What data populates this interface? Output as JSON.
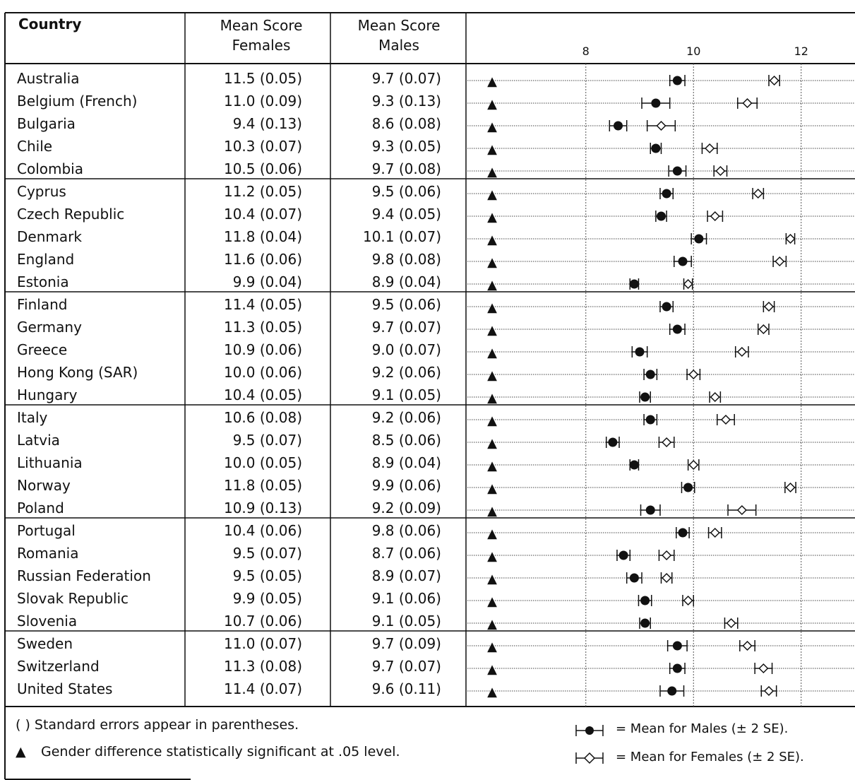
{
  "header": {
    "country": "Country",
    "females": [
      "Mean Score",
      "Females"
    ],
    "males": [
      "Mean Score",
      "Males"
    ]
  },
  "chart_data": {
    "type": "scatter",
    "x_ticks": [
      8,
      10,
      12
    ],
    "x_range": [
      5.8,
      13.0
    ],
    "significance_marker": "▲",
    "rows": [
      {
        "country": "Australia",
        "female": "11.5",
        "female_se": "(0.05)",
        "male": "9.7",
        "male_se": "(0.07)"
      },
      {
        "country": "Belgium (French)",
        "female": "11.0",
        "female_se": "(0.09)",
        "male": "9.3",
        "male_se": "(0.13)"
      },
      {
        "country": "Bulgaria",
        "female": "9.4",
        "female_se": "(0.13)",
        "male": "8.6",
        "male_se": "(0.08)"
      },
      {
        "country": "Chile",
        "female": "10.3",
        "female_se": "(0.07)",
        "male": "9.3",
        "male_se": "(0.05)"
      },
      {
        "country": "Colombia",
        "female": "10.5",
        "female_se": "(0.06)",
        "male": "9.7",
        "male_se": "(0.08)"
      },
      {
        "country": "Cyprus",
        "female": "11.2",
        "female_se": "(0.05)",
        "male": "9.5",
        "male_se": "(0.06)"
      },
      {
        "country": "Czech Republic",
        "female": "10.4",
        "female_se": "(0.07)",
        "male": "9.4",
        "male_se": "(0.05)"
      },
      {
        "country": "Denmark",
        "female": "11.8",
        "female_se": "(0.04)",
        "male": "10.1",
        "male_se": "(0.07)"
      },
      {
        "country": "England",
        "female": "11.6",
        "female_se": "(0.06)",
        "male": "9.8",
        "male_se": "(0.08)"
      },
      {
        "country": "Estonia",
        "female": "9.9",
        "female_se": "(0.04)",
        "male": "8.9",
        "male_se": "(0.04)"
      },
      {
        "country": "Finland",
        "female": "11.4",
        "female_se": "(0.05)",
        "male": "9.5",
        "male_se": "(0.06)"
      },
      {
        "country": "Germany",
        "female": "11.3",
        "female_se": "(0.05)",
        "male": "9.7",
        "male_se": "(0.07)"
      },
      {
        "country": "Greece",
        "female": "10.9",
        "female_se": "(0.06)",
        "male": "9.0",
        "male_se": "(0.07)"
      },
      {
        "country": "Hong Kong (SAR)",
        "female": "10.0",
        "female_se": "(0.06)",
        "male": "9.2",
        "male_se": "(0.06)"
      },
      {
        "country": "Hungary",
        "female": "10.4",
        "female_se": "(0.05)",
        "male": "9.1",
        "male_se": "(0.05)"
      },
      {
        "country": "Italy",
        "female": "10.6",
        "female_se": "(0.08)",
        "male": "9.2",
        "male_se": "(0.06)"
      },
      {
        "country": "Latvia",
        "female": "9.5",
        "female_se": "(0.07)",
        "male": "8.5",
        "male_se": "(0.06)"
      },
      {
        "country": "Lithuania",
        "female": "10.0",
        "female_se": "(0.05)",
        "male": "8.9",
        "male_se": "(0.04)"
      },
      {
        "country": "Norway",
        "female": "11.8",
        "female_se": "(0.05)",
        "male": "9.9",
        "male_se": "(0.06)"
      },
      {
        "country": "Poland",
        "female": "10.9",
        "female_se": "(0.13)",
        "male": "9.2",
        "male_se": "(0.09)"
      },
      {
        "country": "Portugal",
        "female": "10.4",
        "female_se": "(0.06)",
        "male": "9.8",
        "male_se": "(0.06)"
      },
      {
        "country": "Romania",
        "female": "9.5",
        "female_se": "(0.07)",
        "male": "8.7",
        "male_se": "(0.06)"
      },
      {
        "country": "Russian Federation",
        "female": "9.5",
        "female_se": "(0.05)",
        "male": "8.9",
        "male_se": "(0.07)"
      },
      {
        "country": "Slovak Republic",
        "female": "9.9",
        "female_se": "(0.05)",
        "male": "9.1",
        "male_se": "(0.06)"
      },
      {
        "country": "Slovenia",
        "female": "10.7",
        "female_se": "(0.06)",
        "male": "9.1",
        "male_se": "(0.05)"
      },
      {
        "country": "Sweden",
        "female": "11.0",
        "female_se": "(0.07)",
        "male": "9.7",
        "male_se": "(0.09)"
      },
      {
        "country": "Switzerland",
        "female": "11.3",
        "female_se": "(0.08)",
        "male": "9.7",
        "male_se": "(0.07)"
      },
      {
        "country": "United States",
        "female": "11.4",
        "female_se": "(0.07)",
        "male": "9.6",
        "male_se": "(0.11)"
      }
    ]
  },
  "legend": {
    "se_note": "( )  Standard errors appear in parentheses.",
    "sig_note": "Gender difference statistically significant at .05 level.",
    "sig_marker": "▲",
    "males": "= Mean for Males (± 2 SE).",
    "females": "= Mean for Females (± 2 SE)."
  }
}
